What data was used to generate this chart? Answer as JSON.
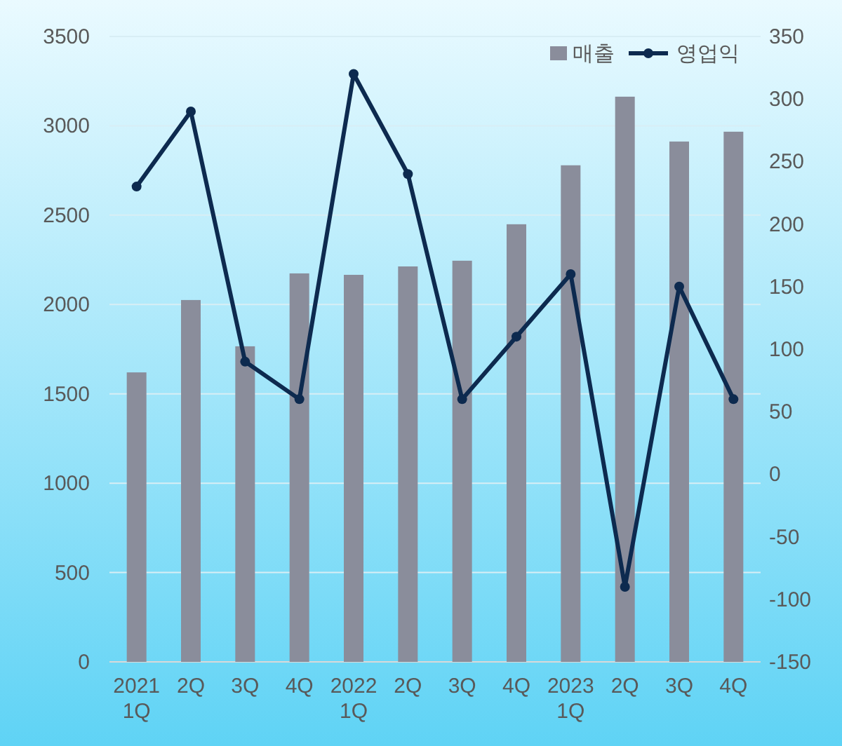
{
  "chart_data": {
    "type": "bar",
    "categories": [
      "2021\n1Q",
      "2Q",
      "3Q",
      "4Q",
      "2022\n1Q",
      "2Q",
      "3Q",
      "4Q",
      "2023\n1Q",
      "2Q",
      "3Q",
      "4Q"
    ],
    "series": [
      {
        "name": "매출",
        "color": "#8a8d9b",
        "values": [
          1620,
          2025,
          1766,
          2174,
          2166,
          2213,
          2245,
          2449,
          2779,
          3163,
          2912,
          2967
        ]
      },
      {
        "name": "영업익",
        "type": "line",
        "axis": "y2",
        "color": "#0d2a4f",
        "values": [
          230,
          290,
          90,
          60,
          320,
          240,
          60,
          110,
          160,
          -90,
          150,
          60
        ]
      }
    ],
    "ylim": [
      0,
      3500
    ],
    "yticks": [
      0,
      500,
      1000,
      1500,
      2000,
      2500,
      3000,
      3500
    ],
    "y2lim": [
      -150,
      350
    ],
    "y2ticks": [
      -150,
      -100,
      -50,
      0,
      50,
      100,
      150,
      200,
      250,
      300,
      350
    ],
    "grid": "y",
    "legend": "top right",
    "marker": "circle"
  }
}
